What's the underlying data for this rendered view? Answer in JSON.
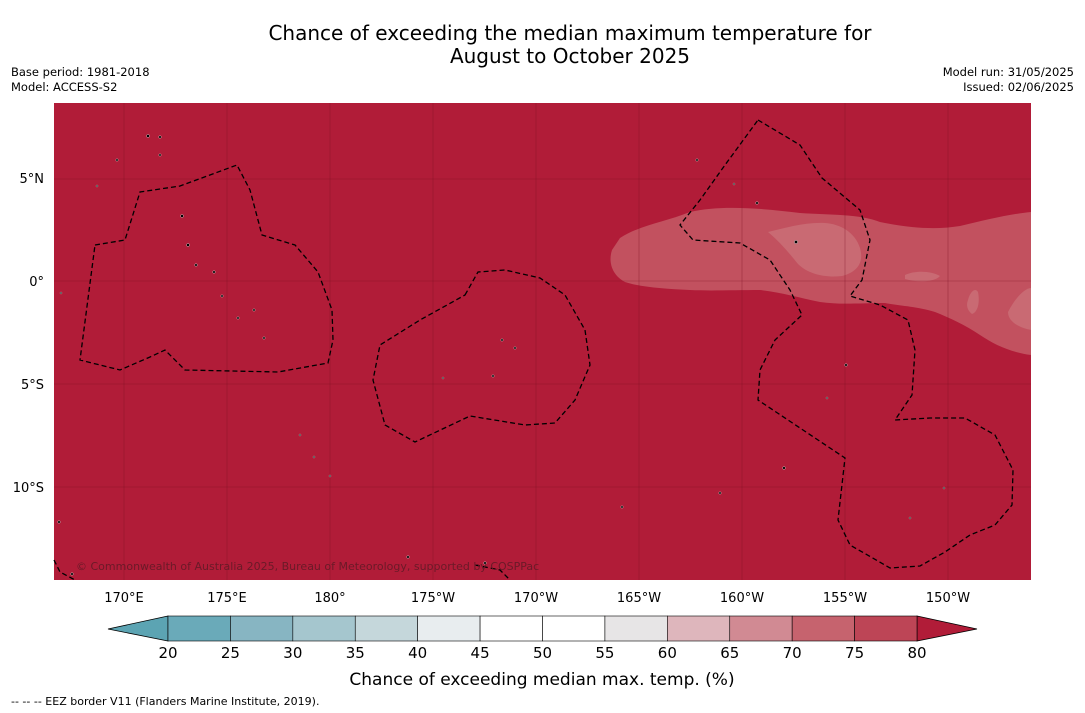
{
  "title_line1": "Chance of exceeding the median maximum temperature for",
  "title_line2": "August to October 2025",
  "meta_left": {
    "base_period": "Base period: 1981-2018",
    "model": "Model: ACCESS-S2"
  },
  "meta_right": {
    "model_run": "Model run: 31/05/2025",
    "issued": "Issued: 02/06/2025"
  },
  "map": {
    "lat_labels": [
      "5°N",
      "0°",
      "5°S",
      "10°S"
    ],
    "lon_labels": [
      "170°E",
      "175°E",
      "180°",
      "175°W",
      "170°W",
      "165°W",
      "160°W",
      "155°W",
      "150°W"
    ],
    "copyright": "© Commonwealth of Australia 2025, Bureau of Meteorology, supported by COSPPac",
    "background_color": "#b11c38"
  },
  "colorbar": {
    "ticks": [
      "20",
      "25",
      "30",
      "35",
      "40",
      "45",
      "50",
      "55",
      "60",
      "65",
      "70",
      "75",
      "80"
    ],
    "colors": [
      "#6aaab9",
      "#87b5c2",
      "#a5c6ce",
      "#c5d7db",
      "#e8edef",
      "#ffffff",
      "#ffffff",
      "#e7e5e6",
      "#deb6bc",
      "#d18a93",
      "#c6636e",
      "#bd4556"
    ],
    "under_color": "#5ca4b3",
    "over_color": "#b11c38",
    "label": "Chance of exceeding median max. temp. (%)"
  },
  "footnote": "--  --  -- EEZ border V11 (Flanders Marine Institute, 2019)."
}
